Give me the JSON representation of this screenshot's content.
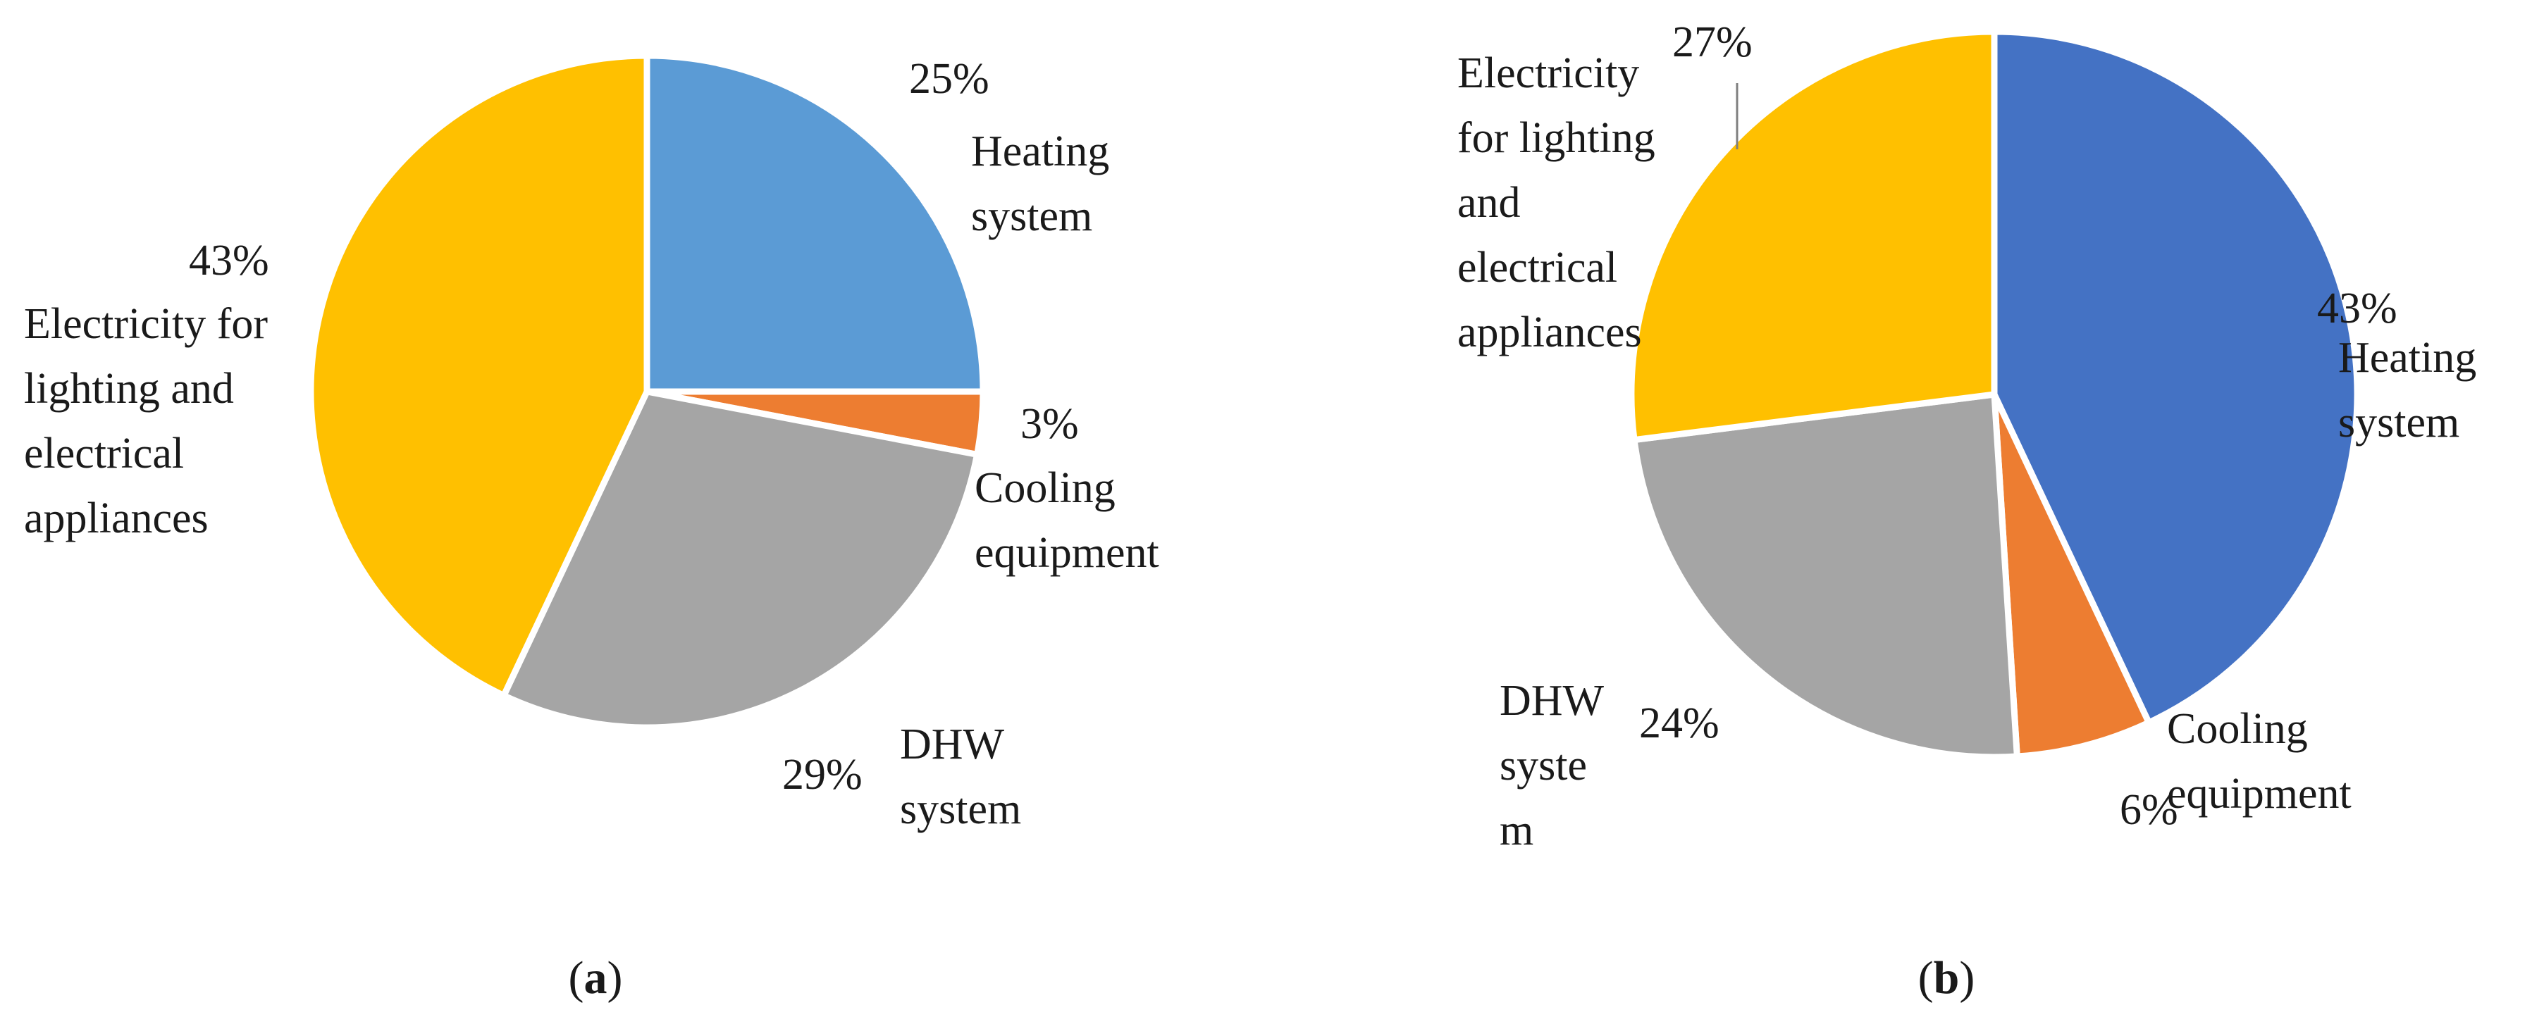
{
  "chart_data": [
    {
      "type": "pie",
      "panel": "a",
      "start_angle_deg": 0,
      "direction": "clockwise",
      "slices": [
        {
          "label_lines": [
            "Heating",
            "system"
          ],
          "value": 25,
          "value_text": "25%",
          "color": "#5B9BD5"
        },
        {
          "label_lines": [
            "Cooling",
            "equipment"
          ],
          "value": 3,
          "value_text": "3%",
          "color": "#ED7D31"
        },
        {
          "label_lines": [
            "DHW",
            "system"
          ],
          "value": 29,
          "value_text": "29%",
          "color": "#A5A5A5"
        },
        {
          "label_lines": [
            "Electricity for",
            "lighting and",
            "electrical",
            "appliances"
          ],
          "value": 43,
          "value_text": "43%",
          "color": "#FFC000"
        }
      ]
    },
    {
      "type": "pie",
      "panel": "b",
      "start_angle_deg": 0,
      "direction": "clockwise",
      "slices": [
        {
          "label_lines": [
            "Heating",
            "system"
          ],
          "value": 43,
          "value_text": "43%",
          "color": "#4472C4"
        },
        {
          "label_lines": [
            "Cooling",
            "equipment"
          ],
          "value": 6,
          "value_text": "6%",
          "color": "#ED7D31"
        },
        {
          "label_lines": [
            "DHW",
            "syste",
            "m"
          ],
          "value": 24,
          "value_text": "24%",
          "color": "#A5A5A5"
        },
        {
          "label_lines": [
            "Electricity",
            "for lighting",
            "and",
            "electrical",
            "appliances"
          ],
          "value": 27,
          "value_text": "27%",
          "color": "#FFC000"
        }
      ]
    }
  ],
  "panel_labels": [
    {
      "open": "(",
      "letter": "a",
      "close": ")"
    },
    {
      "open": "(",
      "letter": "b",
      "close": ")"
    }
  ]
}
